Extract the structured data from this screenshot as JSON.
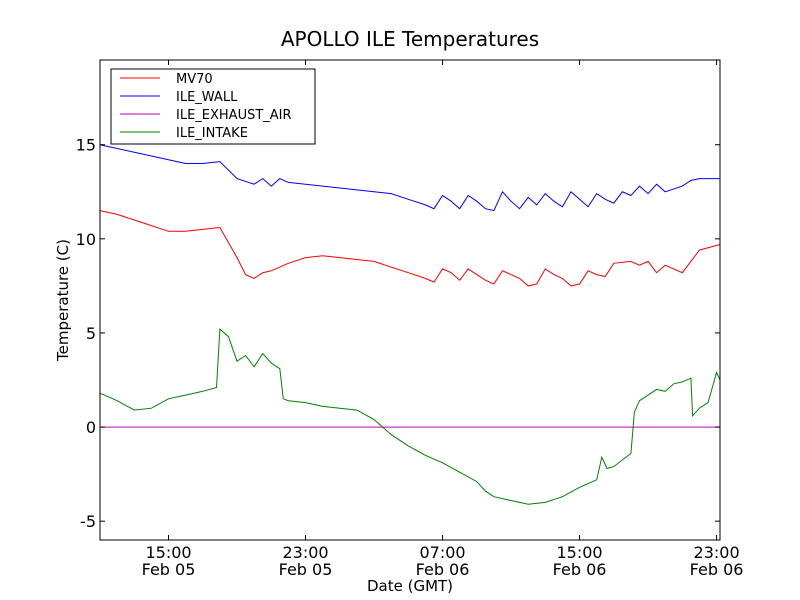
{
  "chart_data": {
    "type": "line",
    "title": "APOLLO ILE Temperatures",
    "xlabel": "Date (GMT)",
    "ylabel": "Temperature (C)",
    "x_unit": "hours",
    "x_range": [
      "2015-02-05 11:00",
      "2015-02-06 23:40"
    ],
    "xlim": [
      0,
      36.2
    ],
    "ylim": [
      -6,
      19.5
    ],
    "grid": false,
    "legend_position": "top-left",
    "x_ticks": [
      {
        "x": 4,
        "line1": "15:00",
        "line2": "Feb 05"
      },
      {
        "x": 12,
        "line1": "23:00",
        "line2": "Feb 05"
      },
      {
        "x": 20,
        "line1": "07:00",
        "line2": "Feb 06"
      },
      {
        "x": 28,
        "line1": "15:00",
        "line2": "Feb 06"
      },
      {
        "x": 36,
        "line1": "23:00",
        "line2": "Feb 06"
      }
    ],
    "y_ticks": [
      {
        "y": 15,
        "label": "15"
      },
      {
        "y": 10,
        "label": "10"
      },
      {
        "y": 5,
        "label": "5"
      },
      {
        "y": 0,
        "label": "0"
      },
      {
        "y": -5,
        "label": "-5"
      }
    ],
    "series": [
      {
        "name": "MV70",
        "color": "#ff0000",
        "points": [
          [
            0,
            11.5
          ],
          [
            1,
            11.3
          ],
          [
            2,
            11.0
          ],
          [
            3,
            10.7
          ],
          [
            4,
            10.4
          ],
          [
            5,
            10.4
          ],
          [
            6,
            10.5
          ],
          [
            7,
            10.6
          ],
          [
            8,
            9.0
          ],
          [
            8.5,
            8.1
          ],
          [
            9,
            7.9
          ],
          [
            9.5,
            8.2
          ],
          [
            10,
            8.3
          ],
          [
            11,
            8.7
          ],
          [
            12,
            9.0
          ],
          [
            13,
            9.1
          ],
          [
            14,
            9.0
          ],
          [
            15,
            8.9
          ],
          [
            16,
            8.8
          ],
          [
            17,
            8.5
          ],
          [
            18,
            8.2
          ],
          [
            19,
            7.9
          ],
          [
            19.5,
            7.7
          ],
          [
            20,
            8.4
          ],
          [
            20.5,
            8.2
          ],
          [
            21,
            7.8
          ],
          [
            21.5,
            8.4
          ],
          [
            22,
            8.1
          ],
          [
            22.5,
            7.8
          ],
          [
            23,
            7.6
          ],
          [
            23.5,
            8.3
          ],
          [
            24,
            8.1
          ],
          [
            24.5,
            7.9
          ],
          [
            25,
            7.5
          ],
          [
            25.5,
            7.6
          ],
          [
            26,
            8.4
          ],
          [
            26.5,
            8.1
          ],
          [
            27,
            7.9
          ],
          [
            27.5,
            7.5
          ],
          [
            28,
            7.6
          ],
          [
            28.5,
            8.3
          ],
          [
            29,
            8.1
          ],
          [
            29.5,
            8.0
          ],
          [
            30,
            8.7
          ],
          [
            31,
            8.8
          ],
          [
            31.5,
            8.6
          ],
          [
            32,
            8.8
          ],
          [
            32.5,
            8.2
          ],
          [
            33,
            8.6
          ],
          [
            34,
            8.2
          ],
          [
            34.5,
            8.8
          ],
          [
            35,
            9.4
          ],
          [
            36.2,
            9.7
          ]
        ]
      },
      {
        "name": "ILE_WALL",
        "color": "#0000ff",
        "points": [
          [
            0,
            15.0
          ],
          [
            1,
            14.8
          ],
          [
            2,
            14.6
          ],
          [
            3,
            14.4
          ],
          [
            4,
            14.2
          ],
          [
            5,
            14.0
          ],
          [
            6,
            14.0
          ],
          [
            7,
            14.1
          ],
          [
            8,
            13.2
          ],
          [
            9,
            12.9
          ],
          [
            9.5,
            13.2
          ],
          [
            10,
            12.8
          ],
          [
            10.5,
            13.2
          ],
          [
            11,
            13.0
          ],
          [
            12,
            12.9
          ],
          [
            13,
            12.8
          ],
          [
            14,
            12.7
          ],
          [
            15,
            12.6
          ],
          [
            16,
            12.5
          ],
          [
            17,
            12.4
          ],
          [
            18,
            12.1
          ],
          [
            19,
            11.8
          ],
          [
            19.5,
            11.6
          ],
          [
            20,
            12.3
          ],
          [
            20.5,
            12.0
          ],
          [
            21,
            11.6
          ],
          [
            21.5,
            12.3
          ],
          [
            22,
            12.0
          ],
          [
            22.5,
            11.6
          ],
          [
            23,
            11.5
          ],
          [
            23.5,
            12.5
          ],
          [
            24,
            12.0
          ],
          [
            24.5,
            11.6
          ],
          [
            25,
            12.2
          ],
          [
            25.5,
            11.8
          ],
          [
            26,
            12.4
          ],
          [
            26.5,
            12.0
          ],
          [
            27,
            11.7
          ],
          [
            27.5,
            12.5
          ],
          [
            28,
            12.1
          ],
          [
            28.5,
            11.7
          ],
          [
            29,
            12.4
          ],
          [
            29.5,
            12.1
          ],
          [
            30,
            11.9
          ],
          [
            30.5,
            12.5
          ],
          [
            31,
            12.3
          ],
          [
            31.5,
            12.8
          ],
          [
            32,
            12.4
          ],
          [
            32.5,
            12.9
          ],
          [
            33,
            12.5
          ],
          [
            34,
            12.8
          ],
          [
            34.5,
            13.1
          ],
          [
            35,
            13.2
          ],
          [
            36.2,
            13.2
          ]
        ]
      },
      {
        "name": "ILE_EXHAUST_AIR",
        "color": "#bf00bf",
        "points": [
          [
            0,
            0.0
          ],
          [
            36.2,
            0.0
          ]
        ]
      },
      {
        "name": "ILE_INTAKE",
        "color": "#008000",
        "points": [
          [
            0,
            1.8
          ],
          [
            1,
            1.4
          ],
          [
            2,
            0.9
          ],
          [
            3,
            1.0
          ],
          [
            4,
            1.5
          ],
          [
            5,
            1.7
          ],
          [
            6,
            1.9
          ],
          [
            6.8,
            2.1
          ],
          [
            7,
            5.2
          ],
          [
            7.5,
            4.8
          ],
          [
            8,
            3.5
          ],
          [
            8.5,
            3.8
          ],
          [
            9,
            3.2
          ],
          [
            9.5,
            3.9
          ],
          [
            10,
            3.4
          ],
          [
            10.5,
            3.1
          ],
          [
            10.7,
            1.5
          ],
          [
            11,
            1.4
          ],
          [
            12,
            1.3
          ],
          [
            13,
            1.1
          ],
          [
            14,
            1.0
          ],
          [
            15,
            0.9
          ],
          [
            16,
            0.4
          ],
          [
            17,
            -0.4
          ],
          [
            18,
            -1.0
          ],
          [
            19,
            -1.5
          ],
          [
            20,
            -1.9
          ],
          [
            21,
            -2.4
          ],
          [
            22,
            -2.9
          ],
          [
            22.5,
            -3.4
          ],
          [
            23,
            -3.7
          ],
          [
            24,
            -3.9
          ],
          [
            25,
            -4.1
          ],
          [
            26,
            -4.0
          ],
          [
            27,
            -3.7
          ],
          [
            28,
            -3.2
          ],
          [
            29,
            -2.8
          ],
          [
            29.3,
            -1.6
          ],
          [
            29.6,
            -2.2
          ],
          [
            30,
            -2.1
          ],
          [
            31,
            -1.4
          ],
          [
            31.2,
            0.8
          ],
          [
            31.5,
            1.4
          ],
          [
            32,
            1.7
          ],
          [
            32.5,
            2.0
          ],
          [
            33,
            1.9
          ],
          [
            33.5,
            2.3
          ],
          [
            34,
            2.4
          ],
          [
            34.5,
            2.6
          ],
          [
            34.6,
            0.6
          ],
          [
            35,
            1.0
          ],
          [
            35.5,
            1.3
          ],
          [
            36,
            2.9
          ],
          [
            36.2,
            2.5
          ]
        ]
      }
    ]
  }
}
